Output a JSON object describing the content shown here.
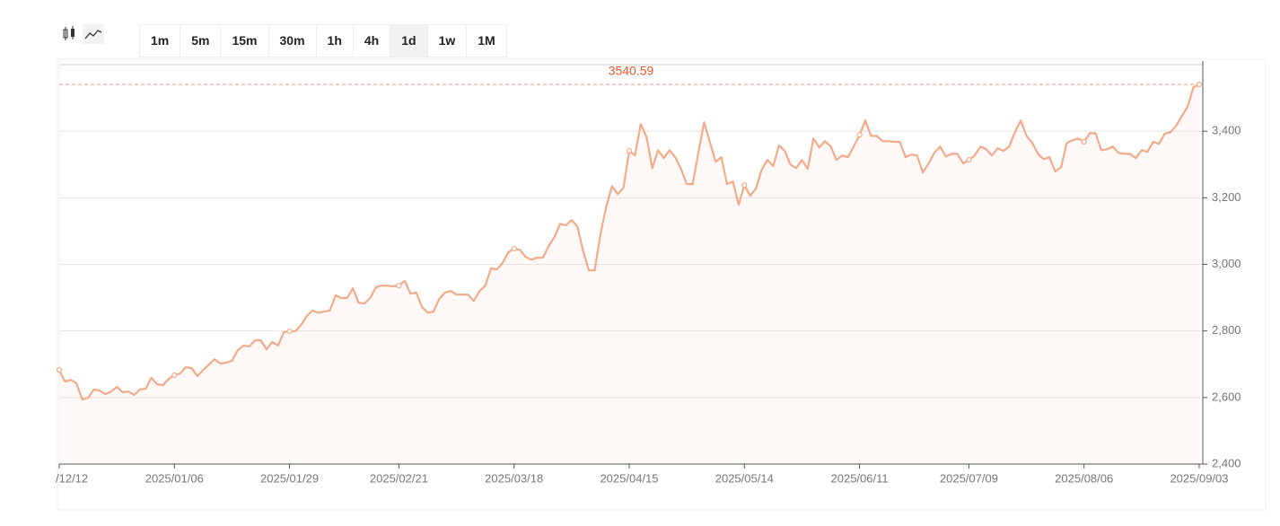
{
  "toolbar": {
    "intervals": [
      {
        "label": "1m",
        "selected": false
      },
      {
        "label": "5m",
        "selected": false
      },
      {
        "label": "15m",
        "selected": false
      },
      {
        "label": "30m",
        "selected": false
      },
      {
        "label": "1h",
        "selected": false
      },
      {
        "label": "4h",
        "selected": false
      },
      {
        "label": "1d",
        "selected": true
      },
      {
        "label": "1w",
        "selected": false
      },
      {
        "label": "1M",
        "selected": false
      }
    ]
  },
  "chart_data": {
    "type": "line",
    "categories": [
      "/12/12",
      null,
      null,
      null,
      null,
      null,
      null,
      null,
      null,
      null,
      null,
      null,
      null,
      null,
      null,
      null,
      null,
      null,
      null,
      null,
      "2025/01/06",
      null,
      null,
      null,
      null,
      null,
      null,
      null,
      null,
      null,
      null,
      null,
      null,
      null,
      null,
      null,
      null,
      null,
      null,
      null,
      "2025/01/29",
      null,
      null,
      null,
      null,
      null,
      null,
      null,
      null,
      null,
      null,
      null,
      null,
      null,
      null,
      null,
      null,
      null,
      null,
      "2025/02/21",
      null,
      null,
      null,
      null,
      null,
      null,
      null,
      null,
      null,
      null,
      null,
      null,
      null,
      null,
      null,
      null,
      null,
      null,
      null,
      "2025/03/18",
      null,
      null,
      null,
      null,
      null,
      null,
      null,
      null,
      null,
      null,
      null,
      null,
      null,
      null,
      null,
      null,
      null,
      null,
      null,
      "2025/04/15",
      null,
      null,
      null,
      null,
      null,
      null,
      null,
      null,
      null,
      null,
      null,
      null,
      null,
      null,
      null,
      null,
      null,
      null,
      null,
      "2025/05/14",
      null,
      null,
      null,
      null,
      null,
      null,
      null,
      null,
      null,
      null,
      null,
      null,
      null,
      null,
      null,
      null,
      null,
      null,
      null,
      "2025/06/11",
      null,
      null,
      null,
      null,
      null,
      null,
      null,
      null,
      null,
      null,
      null,
      null,
      null,
      null,
      null,
      null,
      null,
      null,
      "2025/07/09",
      null,
      null,
      null,
      null,
      null,
      null,
      null,
      null,
      null,
      null,
      null,
      null,
      null,
      null,
      null,
      null,
      null,
      null,
      null,
      "2025/08/06",
      null,
      null,
      null,
      null,
      null,
      null,
      null,
      null,
      null,
      null,
      null,
      null,
      null,
      null,
      null,
      null,
      null,
      null,
      null,
      "2025/09/03"
    ],
    "values": [
      2683,
      2648,
      2653,
      2643,
      2594,
      2599,
      2624,
      2621,
      2610,
      2618,
      2632,
      2616,
      2618,
      2608,
      2624,
      2626,
      2659,
      2640,
      2637,
      2656,
      2667,
      2672,
      2691,
      2688,
      2664,
      2683,
      2699,
      2715,
      2702,
      2705,
      2710,
      2742,
      2756,
      2753,
      2772,
      2772,
      2745,
      2767,
      2756,
      2796,
      2799,
      2799,
      2818,
      2845,
      2861,
      2855,
      2858,
      2861,
      2907,
      2899,
      2899,
      2928,
      2885,
      2882,
      2899,
      2931,
      2936,
      2936,
      2934,
      2936,
      2950,
      2912,
      2915,
      2872,
      2855,
      2858,
      2896,
      2915,
      2920,
      2909,
      2909,
      2909,
      2890,
      2920,
      2936,
      2988,
      2985,
      3004,
      3036,
      3047,
      3044,
      3023,
      3014,
      3020,
      3020,
      3055,
      3082,
      3122,
      3117,
      3133,
      3114,
      3039,
      2982,
      2982,
      3090,
      3173,
      3235,
      3211,
      3230,
      3341,
      3327,
      3421,
      3384,
      3289,
      3343,
      3319,
      3343,
      3322,
      3287,
      3241,
      3241,
      3335,
      3427,
      3368,
      3308,
      3322,
      3241,
      3249,
      3179,
      3238,
      3206,
      3227,
      3284,
      3314,
      3295,
      3357,
      3341,
      3300,
      3289,
      3314,
      3287,
      3378,
      3351,
      3370,
      3354,
      3314,
      3327,
      3322,
      3354,
      3389,
      3432,
      3386,
      3386,
      3370,
      3370,
      3368,
      3368,
      3322,
      3330,
      3327,
      3276,
      3303,
      3335,
      3354,
      3324,
      3332,
      3332,
      3303,
      3314,
      3327,
      3354,
      3346,
      3327,
      3349,
      3341,
      3354,
      3397,
      3432,
      3386,
      3365,
      3332,
      3316,
      3322,
      3279,
      3292,
      3365,
      3373,
      3378,
      3368,
      3394,
      3394,
      3343,
      3346,
      3354,
      3335,
      3332,
      3332,
      3319,
      3343,
      3338,
      3368,
      3362,
      3392,
      3397,
      3416,
      3446,
      3475,
      3532,
      3540.59
    ],
    "color": "#f2ab8a",
    "last_price": 3540.59,
    "last_price_color": "#e4572e",
    "ylim": [
      2400,
      3600
    ],
    "yticks": [
      {
        "value": 2400,
        "label": "2,400"
      },
      {
        "value": 2600,
        "label": "2,600"
      },
      {
        "value": 2800,
        "label": "2,800"
      },
      {
        "value": 3000,
        "label": "3,000"
      },
      {
        "value": 3200,
        "label": "3,200"
      },
      {
        "value": 3400,
        "label": "3,400"
      }
    ],
    "grid": true
  }
}
